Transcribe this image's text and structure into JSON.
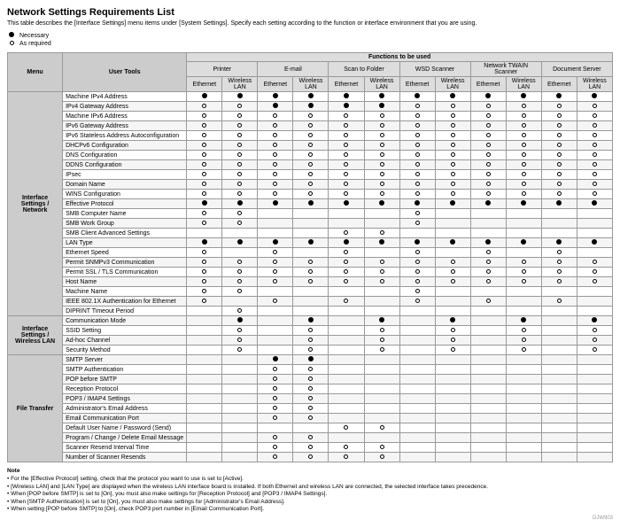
{
  "title": "Network Settings Requirements List",
  "subtitle": "This table describes the [Interface Settings] menu items under [System Settings]. Specify each setting according to the function or interface environment that you are using.",
  "legend": {
    "necessary": "Necessary",
    "as_required": "As required"
  },
  "header": {
    "functions": "Functions to be used",
    "menu": "Menu",
    "user_tools": "User Tools",
    "groups": [
      "Printer",
      "E-mail",
      "Scan to Folder",
      "WSD Scanner",
      "Network TWAIN Scanner",
      "Document Server"
    ],
    "sub": [
      "Ethernet",
      "Wireless LAN"
    ]
  },
  "sections": [
    {
      "menu": "Interface Settings / Network",
      "rows": [
        {
          "t": "Machine IPv4 Address",
          "v": [
            "F",
            "F",
            "F",
            "F",
            "F",
            "F",
            "F",
            "F",
            "F",
            "F",
            "F",
            "F"
          ]
        },
        {
          "t": "IPv4 Gateway Address",
          "v": [
            "O",
            "O",
            "F",
            "F",
            "F",
            "F",
            "O",
            "O",
            "O",
            "O",
            "O",
            "O"
          ]
        },
        {
          "t": "Machine IPv6 Address",
          "v": [
            "O",
            "O",
            "O",
            "O",
            "O",
            "O",
            "O",
            "O",
            "O",
            "O",
            "O",
            "O"
          ]
        },
        {
          "t": "IPv6 Gateway Address",
          "v": [
            "O",
            "O",
            "O",
            "O",
            "O",
            "O",
            "O",
            "O",
            "O",
            "O",
            "O",
            "O"
          ]
        },
        {
          "t": "IPv6 Stateless Address Autoconfiguration",
          "v": [
            "O",
            "O",
            "O",
            "O",
            "O",
            "O",
            "O",
            "O",
            "O",
            "O",
            "O",
            "O"
          ]
        },
        {
          "t": "DHCPv6 Configuration",
          "v": [
            "O",
            "O",
            "O",
            "O",
            "O",
            "O",
            "O",
            "O",
            "O",
            "O",
            "O",
            "O"
          ]
        },
        {
          "t": "DNS Configuration",
          "v": [
            "O",
            "O",
            "O",
            "O",
            "O",
            "O",
            "O",
            "O",
            "O",
            "O",
            "O",
            "O"
          ]
        },
        {
          "t": "DDNS Configuration",
          "v": [
            "O",
            "O",
            "O",
            "O",
            "O",
            "O",
            "O",
            "O",
            "O",
            "O",
            "O",
            "O"
          ]
        },
        {
          "t": "IPsec",
          "v": [
            "O",
            "O",
            "O",
            "O",
            "O",
            "O",
            "O",
            "O",
            "O",
            "O",
            "O",
            "O"
          ]
        },
        {
          "t": "Domain Name",
          "v": [
            "O",
            "O",
            "O",
            "O",
            "O",
            "O",
            "O",
            "O",
            "O",
            "O",
            "O",
            "O"
          ]
        },
        {
          "t": "WINS Configuration",
          "v": [
            "O",
            "O",
            "O",
            "O",
            "O",
            "O",
            "O",
            "O",
            "O",
            "O",
            "O",
            "O"
          ]
        },
        {
          "t": "Effective Protocol",
          "v": [
            "F",
            "F",
            "F",
            "F",
            "F",
            "F",
            "F",
            "F",
            "F",
            "F",
            "F",
            "F"
          ]
        },
        {
          "t": "SMB Computer Name",
          "v": [
            "O",
            "O",
            "",
            "",
            "",
            "",
            "O",
            "",
            "",
            "",
            "",
            ""
          ]
        },
        {
          "t": "SMB Work Group",
          "v": [
            "O",
            "O",
            "",
            "",
            "",
            "",
            "O",
            "",
            "",
            "",
            "",
            ""
          ]
        },
        {
          "t": "SMB Client Advanced Settings",
          "v": [
            "",
            "",
            "",
            "",
            "O",
            "O",
            "",
            "",
            "",
            "",
            "",
            ""
          ]
        },
        {
          "t": "LAN Type",
          "v": [
            "F",
            "F",
            "F",
            "F",
            "F",
            "F",
            "F",
            "F",
            "F",
            "F",
            "F",
            "F"
          ]
        },
        {
          "t": "Ethernet Speed",
          "v": [
            "O",
            "",
            "O",
            "",
            "O",
            "",
            "O",
            "",
            "O",
            "",
            "O",
            ""
          ]
        },
        {
          "t": "Permit SNMPv3 Communication",
          "v": [
            "O",
            "O",
            "O",
            "O",
            "O",
            "O",
            "O",
            "O",
            "O",
            "O",
            "O",
            "O"
          ]
        },
        {
          "t": "Permit SSL / TLS Communication",
          "v": [
            "O",
            "O",
            "O",
            "O",
            "O",
            "O",
            "O",
            "O",
            "O",
            "O",
            "O",
            "O"
          ]
        },
        {
          "t": "Host Name",
          "v": [
            "O",
            "O",
            "O",
            "O",
            "O",
            "O",
            "O",
            "O",
            "O",
            "O",
            "O",
            "O"
          ]
        },
        {
          "t": "Machine Name",
          "v": [
            "O",
            "O",
            "",
            "",
            "",
            "",
            "O",
            "",
            "",
            "",
            "",
            ""
          ]
        },
        {
          "t": "IEEE 802.1X Authentication for Ethernet",
          "v": [
            "O",
            "",
            "O",
            "",
            "O",
            "",
            "O",
            "",
            "O",
            "",
            "O",
            ""
          ]
        },
        {
          "t": "DIPRINT Timeout Period",
          "v": [
            "",
            "O",
            "",
            "",
            "",
            "",
            "",
            "",
            "",
            "",
            "",
            ""
          ]
        }
      ]
    },
    {
      "menu": "Interface Settings / Wireless LAN",
      "rows": [
        {
          "t": "Communication Mode",
          "v": [
            "",
            "F",
            "",
            "F",
            "",
            "F",
            "",
            "F",
            "",
            "F",
            "",
            "F"
          ]
        },
        {
          "t": "SSID Setting",
          "v": [
            "",
            "O",
            "",
            "O",
            "",
            "O",
            "",
            "O",
            "",
            "O",
            "",
            "O"
          ]
        },
        {
          "t": "Ad-hoc Channel",
          "v": [
            "",
            "O",
            "",
            "O",
            "",
            "O",
            "",
            "O",
            "",
            "O",
            "",
            "O"
          ]
        },
        {
          "t": "Security Method",
          "v": [
            "",
            "O",
            "",
            "O",
            "",
            "O",
            "",
            "O",
            "",
            "O",
            "",
            "O"
          ]
        }
      ]
    },
    {
      "menu": "File Transfer",
      "rows": [
        {
          "t": "SMTP Server",
          "v": [
            "",
            "",
            "F",
            "F",
            "",
            "",
            "",
            "",
            "",
            "",
            "",
            ""
          ]
        },
        {
          "t": "SMTP Authentication",
          "v": [
            "",
            "",
            "O",
            "O",
            "",
            "",
            "",
            "",
            "",
            "",
            "",
            ""
          ]
        },
        {
          "t": "POP before SMTP",
          "v": [
            "",
            "",
            "O",
            "O",
            "",
            "",
            "",
            "",
            "",
            "",
            "",
            ""
          ]
        },
        {
          "t": "Reception Protocol",
          "v": [
            "",
            "",
            "O",
            "O",
            "",
            "",
            "",
            "",
            "",
            "",
            "",
            ""
          ]
        },
        {
          "t": "POP3 / IMAP4 Settings",
          "v": [
            "",
            "",
            "O",
            "O",
            "",
            "",
            "",
            "",
            "",
            "",
            "",
            ""
          ]
        },
        {
          "t": "Administrator's Email Address",
          "v": [
            "",
            "",
            "O",
            "O",
            "",
            "",
            "",
            "",
            "",
            "",
            "",
            ""
          ]
        },
        {
          "t": "Email Communication Port",
          "v": [
            "",
            "",
            "O",
            "O",
            "",
            "",
            "",
            "",
            "",
            "",
            "",
            ""
          ]
        },
        {
          "t": "Default User Name / Password (Send)",
          "v": [
            "",
            "",
            "",
            "",
            "O",
            "O",
            "",
            "",
            "",
            "",
            "",
            ""
          ]
        },
        {
          "t": "Program / Change / Delete Email Message",
          "v": [
            "",
            "",
            "O",
            "O",
            "",
            "",
            "",
            "",
            "",
            "",
            "",
            ""
          ]
        },
        {
          "t": "Scanner Resend Interval Time",
          "v": [
            "",
            "",
            "O",
            "O",
            "O",
            "O",
            "",
            "",
            "",
            "",
            "",
            ""
          ]
        },
        {
          "t": "Number of Scanner Resends",
          "v": [
            "",
            "",
            "O",
            "O",
            "O",
            "O",
            "",
            "",
            "",
            "",
            "",
            ""
          ]
        }
      ]
    }
  ],
  "notes": {
    "heading": "Note",
    "items": [
      "For the [Effective Protocol] setting, check that the protocol you want to use is set to [Active].",
      "[Wireless LAN] and [LAN Type] are displayed when the wireless LAN interface board is installed. If both Ethernet and wireless LAN are connected, the selected interface takes precedence.",
      "When [POP before SMTP] is set to [On], you must also make settings for [Reception Protocol] and [POP3 / IMAP4 Settings].",
      "When [SMTP Authentication] is set to [On], you must also make settings for [Administrator's Email Address].",
      "When setting [POP before SMTP] to [On], check POP3 port number in [Email Communication Port]."
    ]
  },
  "corner": "DJW903"
}
